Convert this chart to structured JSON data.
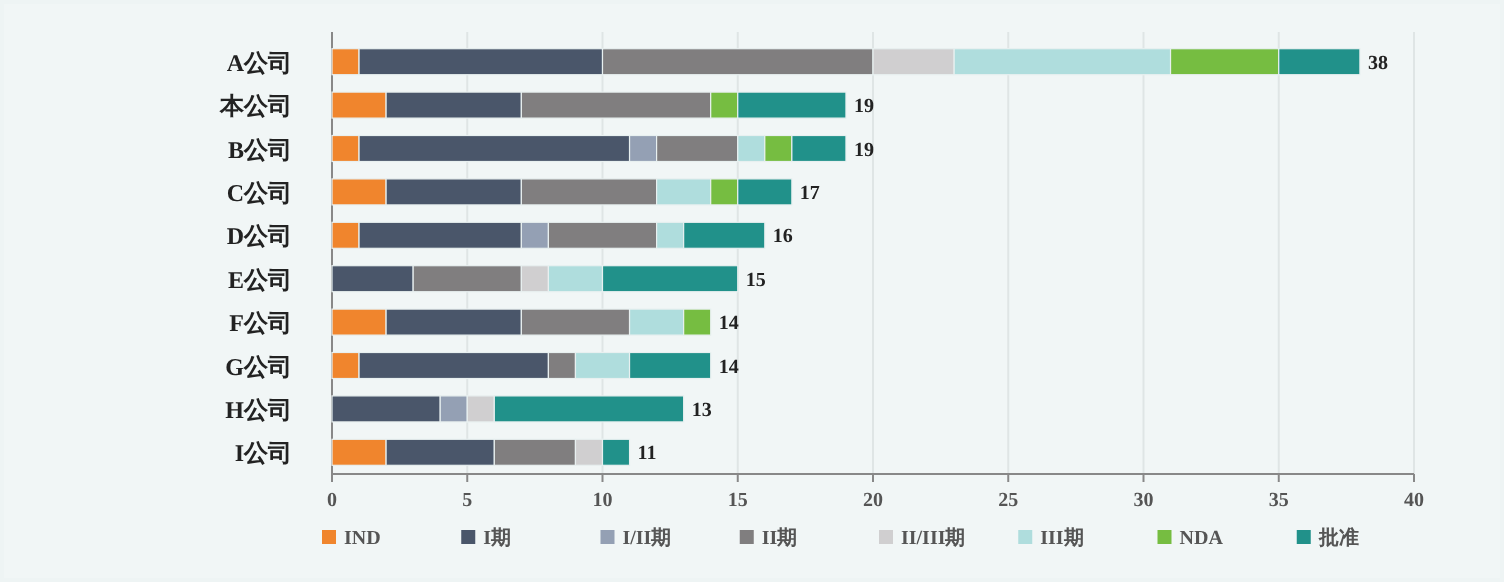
{
  "chart_data": {
    "type": "bar",
    "orientation": "horizontal",
    "stacked": true,
    "categories": [
      "A公司",
      "本公司",
      "B公司",
      "C公司",
      "D公司",
      "E公司",
      "F公司",
      "G公司",
      "H公司",
      "I公司"
    ],
    "series": [
      {
        "name": "IND",
        "color": "#f0852d",
        "values": [
          1,
          2,
          1,
          2,
          1,
          null,
          2,
          1,
          null,
          2
        ]
      },
      {
        "name": "I期",
        "color": "#4a566a",
        "values": [
          9,
          5,
          10,
          5,
          6,
          3,
          5,
          7,
          4,
          4
        ]
      },
      {
        "name": "I/II期",
        "color": "#94a0b4",
        "values": [
          null,
          null,
          1,
          null,
          1,
          null,
          null,
          null,
          1,
          null
        ]
      },
      {
        "name": "II期",
        "color": "#807e7f",
        "values": [
          10,
          7,
          3,
          5,
          4,
          4,
          4,
          1,
          null,
          3
        ]
      },
      {
        "name": "II/III期",
        "color": "#d0cfd0",
        "values": [
          3,
          null,
          null,
          null,
          null,
          1,
          null,
          null,
          1,
          1
        ]
      },
      {
        "name": "III期",
        "color": "#afdddd",
        "values": [
          8,
          null,
          1,
          2,
          1,
          2,
          2,
          2,
          null,
          null
        ]
      },
      {
        "name": "NDA",
        "color": "#76bd41",
        "values": [
          4,
          1,
          1,
          1,
          null,
          null,
          1,
          null,
          null,
          null
        ]
      },
      {
        "name": "批准",
        "color": "#21918a",
        "values": [
          3,
          4,
          2,
          2,
          3,
          5,
          null,
          3,
          7,
          1
        ]
      }
    ],
    "totals": [
      "38",
      "19",
      "19",
      "17",
      "16",
      "15",
      "14",
      "14",
      "13",
      "11"
    ],
    "xlim": [
      0,
      40
    ],
    "xticks": [
      0,
      5,
      10,
      15,
      20,
      25,
      30,
      35,
      40
    ],
    "grid": "x",
    "legend": "bottom"
  }
}
